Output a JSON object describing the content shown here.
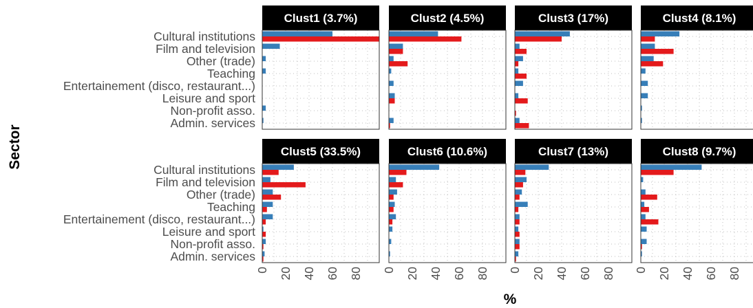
{
  "chart_data": {
    "type": "bar",
    "orientation": "horizontal",
    "facet_layout": "2 rows x 4 columns",
    "xlabel": "%",
    "ylabel": "Sector",
    "xlim": [
      0,
      100
    ],
    "xticks": [
      0,
      20,
      40,
      60,
      80
    ],
    "grid": "dotted",
    "legend": "none",
    "colors": {
      "red": "#e41a1c",
      "blue": "#377eb8",
      "strip": "#000000"
    },
    "categories": [
      "Admin. services",
      "Non-profit asso.",
      "Leisure and sport",
      "Entertainement (disco, restaurant...)",
      "Teaching",
      "Other (trade)",
      "Film and television",
      "Cultural institutions"
    ],
    "panels": [
      {
        "title": "Clust1 (3.7%)",
        "red": [
          0,
          0,
          0,
          0,
          0,
          0,
          0,
          100
        ],
        "blue": [
          1,
          3,
          0,
          0,
          3,
          3,
          15,
          60
        ]
      },
      {
        "title": "Clust2 (4.5%)",
        "red": [
          1,
          0,
          5,
          0,
          0,
          16,
          12,
          62
        ],
        "blue": [
          4,
          0,
          5,
          4,
          2,
          4,
          12,
          42
        ]
      },
      {
        "title": "Clust3 (17%)",
        "red": [
          12,
          1,
          11,
          0,
          10,
          3,
          10,
          40
        ],
        "blue": [
          4,
          0,
          3,
          7,
          3,
          7,
          4,
          47
        ]
      },
      {
        "title": "Clust4 (8.1%)",
        "red": [
          0,
          0,
          0,
          0,
          0,
          19,
          28,
          12
        ],
        "blue": [
          1,
          1,
          6,
          6,
          4,
          11,
          12,
          33
        ]
      },
      {
        "title": "Clust5 (33.5%)",
        "red": [
          1,
          1,
          3,
          3,
          4,
          16,
          37,
          14
        ],
        "blue": [
          2,
          3,
          1,
          9,
          9,
          9,
          7,
          27
        ]
      },
      {
        "title": "Clust6 (10.6%)",
        "red": [
          0,
          0,
          0,
          3,
          4,
          4,
          12,
          15
        ],
        "blue": [
          1,
          2,
          3,
          6,
          5,
          7,
          6,
          43
        ]
      },
      {
        "title": "Clust7 (13%)",
        "red": [
          1,
          4,
          4,
          4,
          3,
          4,
          7,
          9
        ],
        "blue": [
          3,
          4,
          3,
          4,
          11,
          6,
          10,
          29
        ]
      },
      {
        "title": "Clust8 (9.7%)",
        "red": [
          0,
          1,
          0,
          15,
          7,
          14,
          0,
          28
        ],
        "blue": [
          1,
          5,
          5,
          4,
          3,
          4,
          2,
          52
        ]
      }
    ]
  }
}
